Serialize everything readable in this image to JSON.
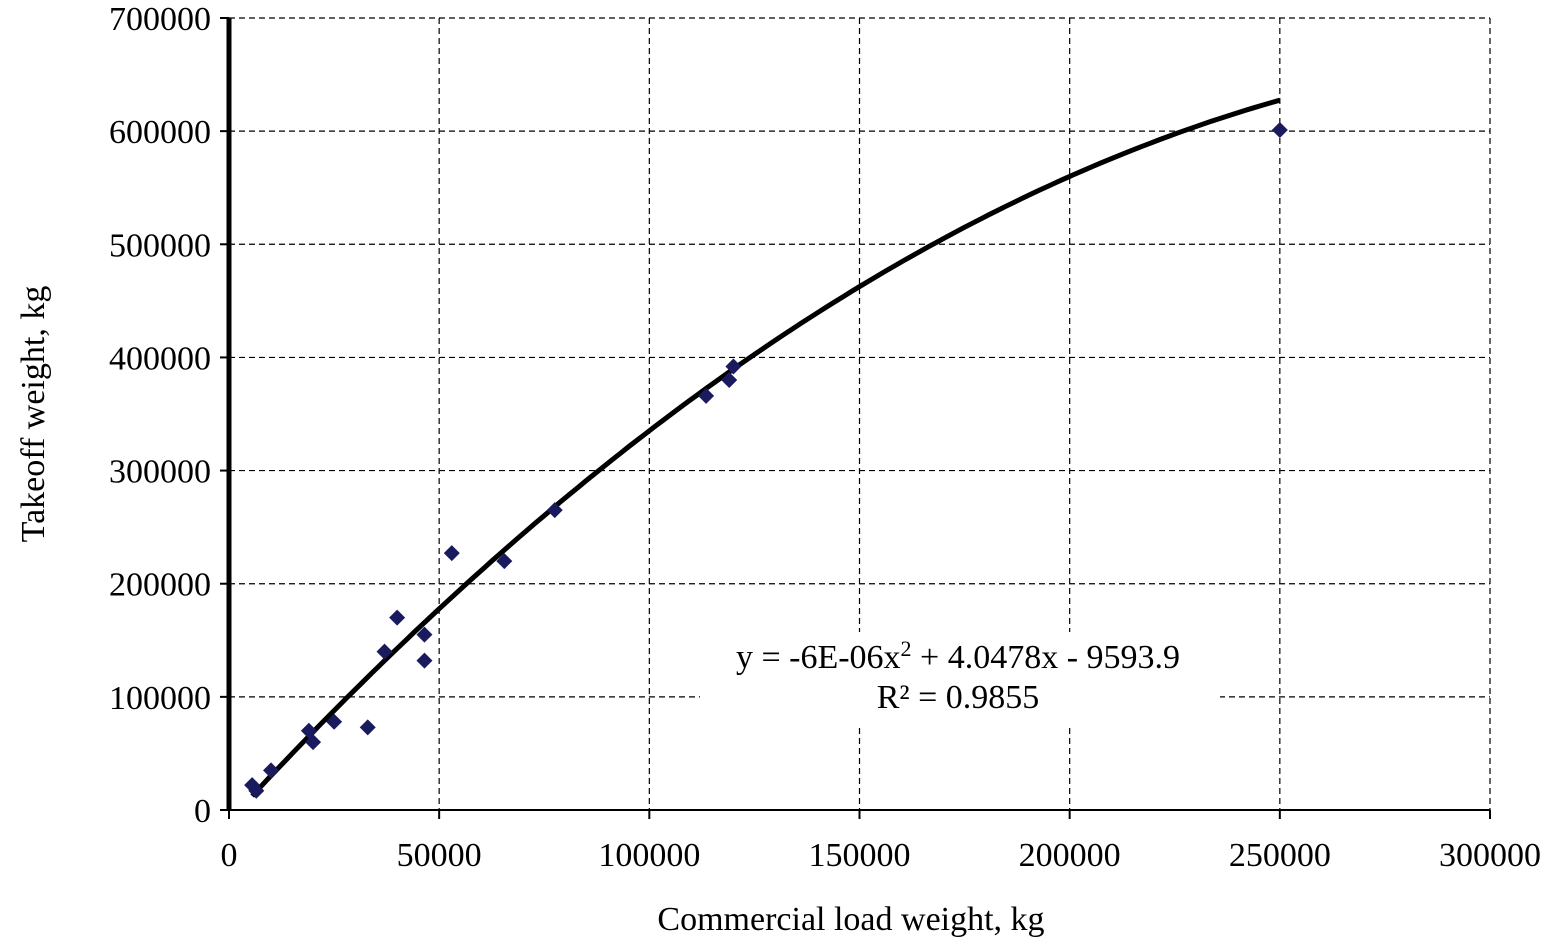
{
  "chart_data": {
    "type": "scatter",
    "title": "",
    "xlabel": "Commercial load weight, kg",
    "ylabel": "Takeoff weight, kg",
    "xlim": [
      0,
      300000
    ],
    "ylim": [
      0,
      700000
    ],
    "x_ticks": [
      "0",
      "50000",
      "100000",
      "150000",
      "200000",
      "250000",
      "300000"
    ],
    "y_ticks": [
      "0",
      "100000",
      "200000",
      "300000",
      "400000",
      "500000",
      "600000",
      "700000"
    ],
    "grid": "dashed",
    "legend": "none",
    "series": [
      {
        "marker": "diamond",
        "color": "#1a1a5e",
        "points": [
          {
            "x": 5500,
            "y": 22000
          },
          {
            "x": 6500,
            "y": 17000
          },
          {
            "x": 10000,
            "y": 35000
          },
          {
            "x": 19000,
            "y": 70000
          },
          {
            "x": 20000,
            "y": 60000
          },
          {
            "x": 25000,
            "y": 78000
          },
          {
            "x": 33000,
            "y": 73000
          },
          {
            "x": 37000,
            "y": 140000
          },
          {
            "x": 40000,
            "y": 170000
          },
          {
            "x": 46500,
            "y": 155000
          },
          {
            "x": 46500,
            "y": 132000
          },
          {
            "x": 53000,
            "y": 227000
          },
          {
            "x": 65500,
            "y": 220000
          },
          {
            "x": 77500,
            "y": 265000
          },
          {
            "x": 113500,
            "y": 366000
          },
          {
            "x": 119000,
            "y": 380000
          },
          {
            "x": 120000,
            "y": 392000
          },
          {
            "x": 250000,
            "y": 601000
          }
        ]
      }
    ],
    "trendline": {
      "type": "polynomial",
      "coefficients": {
        "a": -6e-06,
        "b": 4.0478,
        "c": -9593.9
      },
      "x_range": [
        5500,
        250000
      ],
      "equation_line1": "y = -6E-06x",
      "equation_sup": "2",
      "equation_line1_rest": " + 4.0478x - 9593.9",
      "r_squared": "R² = 0.9855"
    }
  }
}
